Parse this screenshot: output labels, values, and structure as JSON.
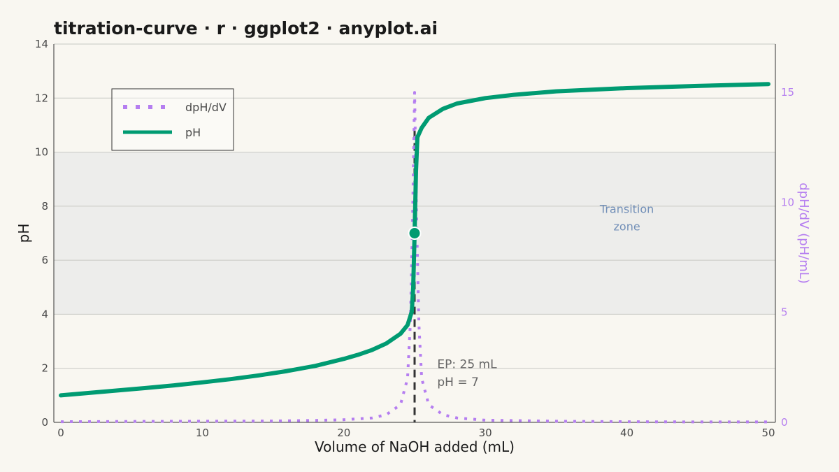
{
  "title": "titration-curve · r · ggplot2 · anyplot.ai",
  "colors": {
    "background": "#F9F7F1",
    "ph_line": "#009B72",
    "derivative": "#B57EF0",
    "zone_fill": "#EDEDEB",
    "equivalence_line": "#333333",
    "grid": "#C8C8C4",
    "zone_text": "#7390B8"
  },
  "chart_data": {
    "type": "line",
    "title": "titration-curve · r · ggplot2 · anyplot.ai",
    "xlabel": "Volume of NaOH added (mL)",
    "ylabel": "pH",
    "y2label": "dpH/dV (pH/mL)",
    "xlim": [
      0,
      50
    ],
    "ylim": [
      0,
      14
    ],
    "y2lim": [
      0,
      17.2
    ],
    "x_ticks": [
      "0",
      "10",
      "20",
      "30",
      "40",
      "50"
    ],
    "y_ticks": [
      "0",
      "2",
      "4",
      "6",
      "8",
      "10",
      "12",
      "14"
    ],
    "y2_ticks": [
      "0",
      "5",
      "10",
      "15"
    ],
    "grid": true,
    "legend_position": "top-left",
    "legend": [
      "dpH/dV",
      "pH"
    ],
    "series": [
      {
        "name": "pH",
        "axis": "left",
        "style": "solid",
        "x": [
          0,
          2,
          4,
          6,
          8,
          10,
          12,
          14,
          16,
          18,
          20,
          21,
          22,
          23,
          24,
          24.5,
          24.8,
          24.9,
          25,
          25.1,
          25.2,
          25.5,
          26,
          27,
          28,
          30,
          32,
          35,
          40,
          45,
          50
        ],
        "y": [
          1.0,
          1.09,
          1.18,
          1.27,
          1.37,
          1.48,
          1.6,
          1.74,
          1.9,
          2.09,
          2.35,
          2.5,
          2.68,
          2.92,
          3.28,
          3.6,
          4.1,
          5.0,
          7.0,
          9.3,
          10.55,
          10.9,
          11.27,
          11.6,
          11.8,
          12.0,
          12.12,
          12.25,
          12.37,
          12.45,
          12.52
        ]
      },
      {
        "name": "dpH/dV",
        "axis": "right",
        "style": "dotted",
        "x": [
          0,
          5,
          10,
          15,
          18,
          20,
          22,
          23,
          24,
          24.5,
          24.7,
          24.85,
          25,
          25.15,
          25.3,
          25.5,
          26,
          27,
          28,
          30,
          35,
          40,
          45,
          50
        ],
        "y": [
          0.03,
          0.04,
          0.05,
          0.06,
          0.09,
          0.12,
          0.2,
          0.35,
          0.8,
          2.0,
          4.5,
          9.0,
          15.0,
          9.0,
          4.5,
          2.0,
          0.8,
          0.35,
          0.2,
          0.1,
          0.05,
          0.03,
          0.02,
          0.02
        ]
      }
    ],
    "shaded_band": {
      "y_from": 4,
      "y_to": 10,
      "label_line1": "Transition",
      "label_line2": "zone"
    },
    "equivalence_point": {
      "x": 25,
      "y": 7,
      "label_line1": "EP: 25 mL",
      "label_line2": "pH = 7"
    }
  }
}
